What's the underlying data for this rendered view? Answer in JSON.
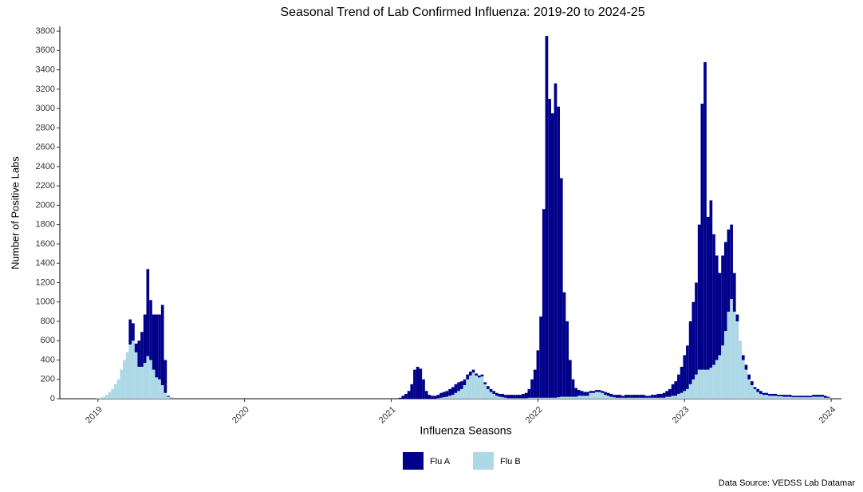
{
  "chart_data": {
    "type": "stacked_bar",
    "title": "Seasonal Trend of Lab Confirmed Influenza: 2019-20 to 2024-25",
    "x_label": "Influenza Seasons",
    "y_label": "Number of Positive Labs",
    "source": "Data Source: VEDSS Lab Datamar",
    "xlim": [
      2018.74,
      2024.07
    ],
    "xticks": [
      2019,
      2020,
      2021,
      2022,
      2023,
      2024
    ],
    "ylim": [
      0,
      3850
    ],
    "yticks": [
      0,
      200,
      400,
      600,
      800,
      1000,
      1200,
      1400,
      1600,
      1800,
      2000,
      2200,
      2400,
      2600,
      2800,
      3000,
      3200,
      3400,
      3600,
      3800
    ],
    "bar_width": 0.02,
    "legend": "bottom",
    "x": [
      2019.0,
      2019.02,
      2019.04,
      2019.06,
      2019.08,
      2019.1,
      2019.12,
      2019.14,
      2019.16,
      2019.18,
      2019.2,
      2019.22,
      2019.24,
      2019.26,
      2019.28,
      2019.3,
      2019.32,
      2019.34,
      2019.36,
      2019.38,
      2019.4,
      2019.42,
      2019.44,
      2019.46,
      2019.48,
      2019.5,
      2021.0,
      2021.02,
      2021.04,
      2021.06,
      2021.08,
      2021.1,
      2021.12,
      2021.14,
      2021.16,
      2021.18,
      2021.2,
      2021.22,
      2021.24,
      2021.26,
      2021.28,
      2021.3,
      2021.32,
      2021.34,
      2021.36,
      2021.38,
      2021.4,
      2021.42,
      2021.44,
      2021.46,
      2021.48,
      2021.5,
      2021.52,
      2021.54,
      2021.56,
      2021.58,
      2021.6,
      2021.62,
      2021.64,
      2021.66,
      2021.68,
      2021.7,
      2021.72,
      2021.74,
      2021.76,
      2021.78,
      2021.8,
      2021.82,
      2021.84,
      2021.86,
      2021.88,
      2021.9,
      2021.92,
      2021.94,
      2021.96,
      2021.98,
      2022.0,
      2022.02,
      2022.04,
      2022.06,
      2022.08,
      2022.1,
      2022.12,
      2022.14,
      2022.16,
      2022.18,
      2022.2,
      2022.22,
      2022.24,
      2022.26,
      2022.28,
      2022.3,
      2022.32,
      2022.34,
      2022.36,
      2022.38,
      2022.4,
      2022.42,
      2022.44,
      2022.46,
      2022.48,
      2022.5,
      2022.52,
      2022.54,
      2022.56,
      2022.58,
      2022.6,
      2022.62,
      2022.64,
      2022.66,
      2022.68,
      2022.7,
      2022.72,
      2022.74,
      2022.76,
      2022.78,
      2022.8,
      2022.82,
      2022.84,
      2022.86,
      2022.88,
      2022.9,
      2022.92,
      2022.94,
      2022.96,
      2022.98,
      2023.0,
      2023.02,
      2023.04,
      2023.06,
      2023.08,
      2023.1,
      2023.12,
      2023.14,
      2023.16,
      2023.18,
      2023.2,
      2023.22,
      2023.24,
      2023.26,
      2023.28,
      2023.3,
      2023.32,
      2023.34,
      2023.36,
      2023.38,
      2023.4,
      2023.42,
      2023.44,
      2023.46,
      2023.48,
      2023.5,
      2023.52,
      2023.54,
      2023.56,
      2023.58,
      2023.6,
      2023.62,
      2023.64,
      2023.66,
      2023.68,
      2023.7,
      2023.72,
      2023.74,
      2023.76,
      2023.78,
      2023.8,
      2023.82,
      2023.84,
      2023.86,
      2023.88,
      2023.9,
      2023.92,
      2023.94,
      2023.96,
      2023.98,
      2024.0
    ],
    "series": [
      {
        "name": "Flu B",
        "color": "#add8e6",
        "values": [
          5,
          10,
          20,
          40,
          70,
          100,
          150,
          200,
          300,
          400,
          480,
          560,
          600,
          480,
          330,
          330,
          370,
          440,
          400,
          300,
          220,
          200,
          140,
          60,
          20,
          5,
          0,
          0,
          0,
          0,
          0,
          0,
          0,
          0,
          0,
          0,
          0,
          0,
          0,
          0,
          0,
          0,
          5,
          10,
          15,
          20,
          30,
          40,
          60,
          80,
          100,
          140,
          200,
          240,
          270,
          240,
          220,
          230,
          150,
          100,
          70,
          50,
          30,
          20,
          15,
          10,
          5,
          5,
          5,
          5,
          5,
          5,
          5,
          10,
          10,
          10,
          10,
          10,
          10,
          10,
          10,
          10,
          10,
          15,
          20,
          20,
          20,
          20,
          20,
          20,
          30,
          30,
          30,
          30,
          60,
          60,
          70,
          70,
          60,
          40,
          30,
          20,
          15,
          10,
          10,
          10,
          10,
          10,
          10,
          10,
          10,
          10,
          10,
          10,
          10,
          10,
          10,
          10,
          10,
          10,
          20,
          20,
          30,
          30,
          50,
          60,
          80,
          100,
          150,
          200,
          250,
          300,
          300,
          300,
          300,
          320,
          350,
          400,
          450,
          550,
          700,
          900,
          1030,
          900,
          800,
          600,
          400,
          300,
          200,
          140,
          100,
          70,
          50,
          40,
          40,
          30,
          30,
          30,
          25,
          25,
          20,
          20,
          20,
          15,
          15,
          15,
          15,
          15,
          15,
          15,
          20,
          20,
          20,
          20,
          10,
          10,
          0
        ]
      },
      {
        "name": "Flu A",
        "color": "#00008b",
        "values": [
          0,
          0,
          0,
          0,
          0,
          0,
          0,
          0,
          0,
          0,
          0,
          260,
          180,
          90,
          270,
          360,
          500,
          900,
          620,
          570,
          650,
          670,
          830,
          340,
          10,
          5,
          0,
          0,
          0,
          10,
          30,
          50,
          80,
          150,
          300,
          330,
          310,
          200,
          80,
          40,
          30,
          30,
          35,
          50,
          55,
          60,
          70,
          80,
          90,
          90,
          80,
          60,
          50,
          40,
          30,
          20,
          20,
          20,
          20,
          30,
          30,
          30,
          30,
          30,
          35,
          30,
          35,
          35,
          35,
          35,
          35,
          45,
          55,
          90,
          190,
          290,
          490,
          840,
          1950,
          3740,
          3090,
          2940,
          3250,
          3005,
          2260,
          1080,
          780,
          380,
          180,
          90,
          60,
          50,
          40,
          40,
          20,
          20,
          20,
          20,
          20,
          30,
          30,
          30,
          25,
          30,
          30,
          20,
          30,
          30,
          30,
          30,
          30,
          30,
          30,
          20,
          20,
          30,
          30,
          40,
          40,
          50,
          60,
          80,
          120,
          150,
          200,
          270,
          370,
          450,
          650,
          800,
          950,
          1500,
          2750,
          3180,
          1580,
          1730,
          1350,
          1080,
          850,
          930,
          920,
          850,
          770,
          400,
          70,
          0,
          50,
          50,
          50,
          40,
          20,
          30,
          30,
          20,
          20,
          20,
          20,
          20,
          15,
          15,
          20,
          20,
          20,
          15,
          15,
          15,
          15,
          15,
          15,
          15,
          20,
          20,
          20,
          20,
          20,
          10,
          0
        ]
      }
    ]
  }
}
